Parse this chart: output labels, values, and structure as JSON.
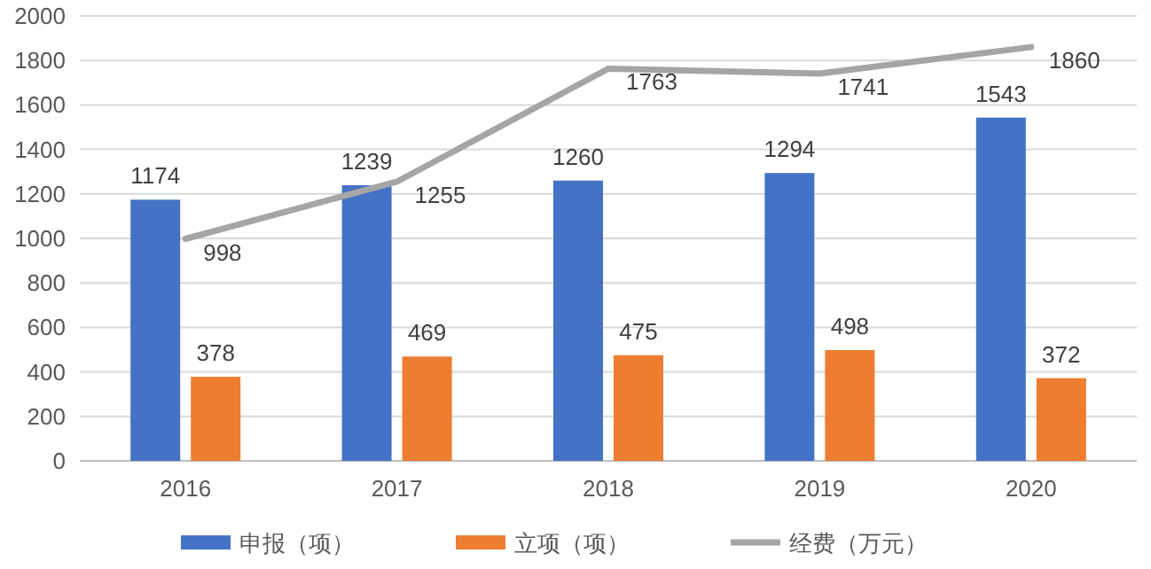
{
  "chart_data": {
    "type": "bar",
    "categories": [
      "2016",
      "2017",
      "2018",
      "2019",
      "2020"
    ],
    "series": [
      {
        "name": "申报（项）",
        "color": "#4472c4",
        "values": [
          1174,
          1239,
          1260,
          1294,
          1543
        ]
      },
      {
        "name": "立项（项）",
        "color": "#ed7d31",
        "values": [
          378,
          469,
          475,
          498,
          372
        ]
      },
      {
        "name": "经费（万元）",
        "type": "line",
        "color": "#a5a5a5",
        "values": [
          998,
          1255,
          1763,
          1741,
          1860
        ]
      }
    ],
    "ylim": [
      0,
      2000
    ],
    "yticks": [
      0,
      200,
      400,
      600,
      800,
      1000,
      1200,
      1400,
      1600,
      1800,
      2000
    ],
    "grid": true,
    "legend": "bottom",
    "data_labels": true
  }
}
